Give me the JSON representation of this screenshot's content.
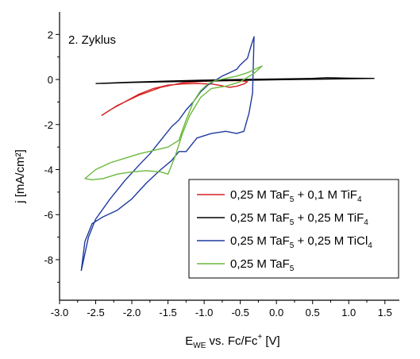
{
  "chart_data": {
    "type": "line",
    "annotation": "2. Zyklus",
    "xlabel": {
      "main": "E",
      "sub": "WE",
      "mid": " vs. Fc/Fc",
      "sup": "+",
      "end": " [V]"
    },
    "ylabel": "j [mA/cm²]",
    "xlim": [
      -3.0,
      1.7
    ],
    "ylim": [
      -9.8,
      3.0
    ],
    "xticks": [
      -3.0,
      -2.5,
      -2.0,
      -1.5,
      -1.0,
      -0.5,
      0.0,
      0.5,
      1.0,
      1.5
    ],
    "xtick_labels": [
      "-3.0",
      "-2.5",
      "-2.0",
      "-1.5",
      "-1.0",
      "-0.5",
      "0.0",
      "0.5",
      "1.0",
      "1.5"
    ],
    "yticks": [
      2,
      0,
      -2,
      -4,
      -6,
      -8
    ],
    "ytick_labels": [
      "2",
      "0",
      "-2",
      "-4",
      "-6",
      "-8"
    ],
    "grid": false,
    "legend_position": "bottom-right",
    "series": [
      {
        "name": "0,25 M TaF5 + 0,1 M TiF4",
        "legend_parts": [
          [
            "0,25 M TaF",
            ""
          ],
          [
            "5",
            "sub"
          ],
          [
            " + 0,1 M TiF",
            ""
          ],
          [
            "4",
            "sub"
          ]
        ],
        "color": "#d62020",
        "x": [
          -2.42,
          -2.3,
          -2.1,
          -1.9,
          -1.7,
          -1.5,
          -1.3,
          -1.1,
          -0.9,
          -0.75,
          -0.65,
          -0.55,
          -0.45,
          -0.4,
          -0.5,
          -0.7,
          -1.0,
          -1.3,
          -1.6,
          -1.9,
          -2.2,
          -2.42
        ],
        "y": [
          -1.6,
          -1.35,
          -1.0,
          -0.65,
          -0.4,
          -0.25,
          -0.2,
          -0.18,
          -0.2,
          -0.28,
          -0.35,
          -0.3,
          -0.2,
          -0.1,
          -0.05,
          -0.05,
          -0.08,
          -0.15,
          -0.35,
          -0.7,
          -1.15,
          -1.6
        ]
      },
      {
        "name": "0,25 M TaF5 + 0,25 M TiF4",
        "legend_parts": [
          [
            "0,25 M TaF",
            ""
          ],
          [
            "5",
            "sub"
          ],
          [
            " + 0,25 M TiF",
            ""
          ],
          [
            "4",
            "sub"
          ]
        ],
        "color": "#000000",
        "x": [
          -2.5,
          -2.0,
          -1.5,
          -1.0,
          -0.5,
          0.0,
          0.5,
          0.7,
          1.0,
          1.35,
          1.0,
          0.5,
          0.0,
          -0.5,
          -1.0,
          -1.5,
          -2.0,
          -2.5
        ],
        "y": [
          -0.18,
          -0.12,
          -0.07,
          -0.03,
          0.0,
          0.02,
          0.05,
          0.08,
          0.06,
          0.05,
          0.03,
          0.01,
          -0.01,
          -0.04,
          -0.07,
          -0.1,
          -0.13,
          -0.18
        ]
      },
      {
        "name": "0,25 M TaF5 + 0,25 M TiCl4",
        "legend_parts": [
          [
            "0,25 M TaF",
            ""
          ],
          [
            "5",
            "sub"
          ],
          [
            " + 0,25 M TiCl",
            ""
          ],
          [
            "4",
            "sub"
          ]
        ],
        "color": "#1f3a9e",
        "x": [
          -2.7,
          -2.6,
          -2.5,
          -2.3,
          -2.1,
          -1.9,
          -1.75,
          -1.6,
          -1.45,
          -1.35,
          -1.25,
          -1.15,
          -1.05,
          -0.95,
          -0.85,
          -0.75,
          -0.65,
          -0.55,
          -0.5,
          -0.45,
          -0.4,
          -0.35,
          -0.31,
          -0.33,
          -0.38,
          -0.45,
          -0.55,
          -0.7,
          -0.9,
          -1.1,
          -1.25,
          -1.35,
          -1.45,
          -1.6,
          -1.8,
          -2.0,
          -2.2,
          -2.4,
          -2.55,
          -2.65,
          -2.7
        ],
        "y": [
          -8.5,
          -7.0,
          -6.2,
          -5.3,
          -4.5,
          -3.8,
          -3.3,
          -2.7,
          -2.1,
          -1.8,
          -1.35,
          -1.0,
          -0.55,
          -0.25,
          -0.05,
          0.15,
          0.3,
          0.45,
          0.65,
          0.8,
          0.95,
          1.5,
          1.9,
          -0.6,
          -1.5,
          -2.3,
          -2.4,
          -2.3,
          -2.4,
          -2.6,
          -3.2,
          -3.2,
          -3.6,
          -4.0,
          -4.6,
          -5.3,
          -5.8,
          -6.1,
          -6.4,
          -7.2,
          -8.5
        ]
      },
      {
        "name": "0,25 M TaF5",
        "legend_parts": [
          [
            "0,25 M TaF",
            ""
          ],
          [
            "5",
            "sub"
          ]
        ],
        "color": "#6aba3c",
        "x": [
          -2.65,
          -2.5,
          -2.3,
          -2.1,
          -1.9,
          -1.7,
          -1.5,
          -1.35,
          -1.25,
          -1.15,
          -1.05,
          -0.95,
          -0.85,
          -0.7,
          -0.55,
          -0.4,
          -0.3,
          -0.2,
          -0.3,
          -0.5,
          -0.7,
          -0.9,
          -1.05,
          -1.2,
          -1.3,
          -1.4,
          -1.5,
          -1.6,
          -1.8,
          -2.0,
          -2.2,
          -2.4,
          -2.55,
          -2.65
        ],
        "y": [
          -4.4,
          -4.0,
          -3.7,
          -3.5,
          -3.3,
          -3.15,
          -3.0,
          -2.7,
          -1.8,
          -1.0,
          -0.5,
          -0.2,
          -0.05,
          0.05,
          0.15,
          0.3,
          0.45,
          0.6,
          0.3,
          -0.1,
          -0.3,
          -0.4,
          -0.8,
          -1.6,
          -2.4,
          -3.4,
          -4.2,
          -4.1,
          -4.05,
          -4.1,
          -4.2,
          -4.4,
          -4.45,
          -4.4
        ]
      }
    ]
  }
}
